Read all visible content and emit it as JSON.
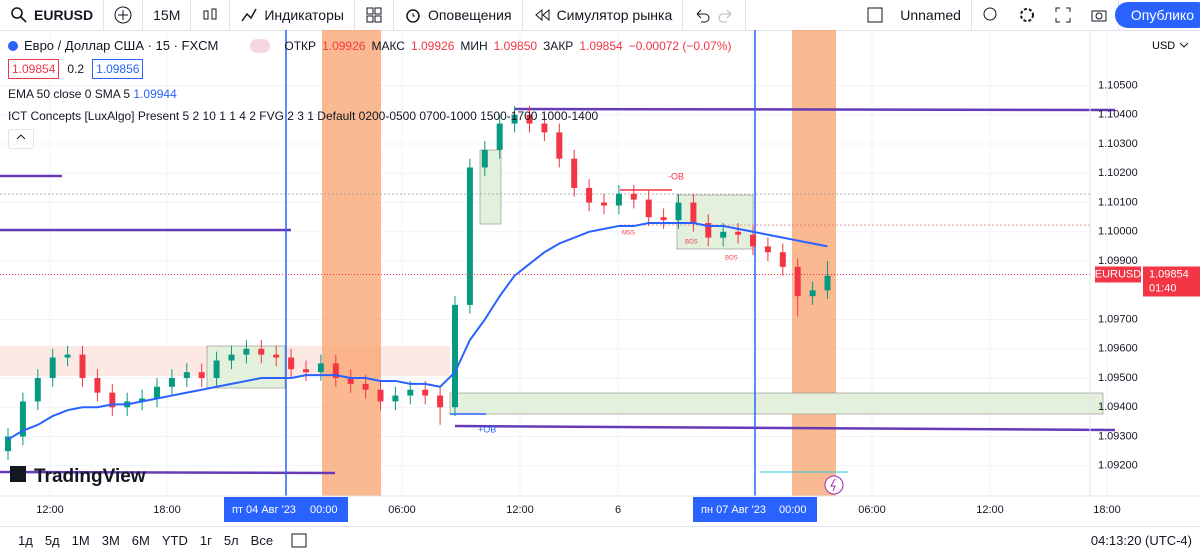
{
  "toolbar": {
    "symbol": "EURUSD",
    "interval": "15M",
    "indicators": "Индикаторы",
    "alerts": "Оповещения",
    "replay": "Симулятор рынка",
    "layout": "Unnamed",
    "publish": "Опублико"
  },
  "legend": {
    "instrument": "Евро / Доллар США · 15 · FXCM",
    "open_label": "ОТКР",
    "open": "1.09926",
    "high_label": "МАКС",
    "high": "1.09926",
    "low_label": "МИН",
    "low": "1.09850",
    "close_label": "ЗАКР",
    "close": "1.09854",
    "change": "−0.00072 (−0.07%)",
    "bid": "1.09854",
    "spread": "0.2",
    "ask": "1.09856",
    "ema_label": "EMA 50 close 0 SMA 5",
    "ema_value": "1.09944",
    "ict_label": "ICT Concepts [LuxAlgo] Present 5 2 10 1 1 4 2 FVG 2 3 1 Default 0200-0500 0700-1000 1500-1700 1000-1400"
  },
  "chart_data": {
    "type": "candlestick",
    "currency": "USD",
    "logo": "TradingView",
    "open": [
      1.0925,
      1.093,
      1.0942,
      1.095,
      1.0957,
      1.0958,
      1.095,
      1.0945,
      1.094,
      1.0942,
      1.0943,
      1.0947,
      1.095,
      1.0952,
      1.095,
      1.0956,
      1.0958,
      1.096,
      1.0958,
      1.0957,
      1.0953,
      1.0952,
      1.0955,
      1.095,
      1.0948,
      1.0946,
      1.0942,
      1.0944,
      1.0946,
      1.0944,
      1.094,
      1.0975,
      1.1022,
      1.1028,
      1.1037,
      1.104,
      1.1037,
      1.1034,
      1.1025,
      1.1015,
      1.101,
      1.1009,
      1.1013,
      1.1011,
      1.1005,
      1.1004,
      1.101,
      1.1003,
      1.0998,
      1.1,
      1.0999,
      1.0995,
      1.0993,
      1.0988,
      1.0978,
      1.098
    ],
    "high": [
      1.0933,
      1.0945,
      1.0953,
      1.096,
      1.0961,
      1.0961,
      1.0953,
      1.0948,
      1.0945,
      1.0946,
      1.095,
      1.0953,
      1.0955,
      1.0955,
      1.0959,
      1.0961,
      1.0963,
      1.0963,
      1.0961,
      1.096,
      1.0956,
      1.0958,
      1.0958,
      1.0953,
      1.0951,
      1.0949,
      1.0947,
      1.0949,
      1.0949,
      1.0947,
      1.0978,
      1.1025,
      1.1031,
      1.104,
      1.1043,
      1.1043,
      1.104,
      1.1037,
      1.1028,
      1.1018,
      1.1013,
      1.1016,
      1.1016,
      1.1014,
      1.1008,
      1.1013,
      1.1013,
      1.1006,
      1.1003,
      1.1003,
      1.1002,
      1.0998,
      1.0996,
      1.0991,
      1.0983,
      1.099
    ],
    "low": [
      1.0922,
      1.0927,
      1.0939,
      1.0947,
      1.0954,
      1.0947,
      1.0942,
      1.0937,
      1.0937,
      1.0939,
      1.094,
      1.0944,
      1.0947,
      1.0947,
      1.0947,
      1.0953,
      1.0955,
      1.0955,
      1.0954,
      1.095,
      1.0949,
      1.0949,
      1.0947,
      1.0945,
      1.0943,
      1.0939,
      1.0939,
      1.0941,
      1.0941,
      1.0934,
      1.0937,
      1.0972,
      1.1019,
      1.1025,
      1.1034,
      1.1034,
      1.1031,
      1.1022,
      1.1012,
      1.1007,
      1.1006,
      1.1006,
      1.1008,
      1.1002,
      1.1001,
      1.1001,
      1.1,
      1.0995,
      1.0995,
      1.0996,
      1.0992,
      1.099,
      1.0985,
      1.0971,
      1.0975,
      1.0977
    ],
    "close": [
      1.093,
      1.0942,
      1.095,
      1.0957,
      1.0958,
      1.095,
      1.0945,
      1.094,
      1.0942,
      1.0943,
      1.0947,
      1.095,
      1.0952,
      1.095,
      1.0956,
      1.0958,
      1.096,
      1.0958,
      1.0957,
      1.0953,
      1.0952,
      1.0955,
      1.095,
      1.0948,
      1.0946,
      1.0942,
      1.0944,
      1.0946,
      1.0944,
      1.094,
      1.0975,
      1.1022,
      1.1028,
      1.1037,
      1.104,
      1.1037,
      1.1034,
      1.1025,
      1.1015,
      1.101,
      1.1009,
      1.1013,
      1.1011,
      1.1005,
      1.1004,
      1.101,
      1.1003,
      1.0998,
      1.1,
      1.0999,
      1.0995,
      1.0993,
      1.0988,
      1.0978,
      1.098,
      1.0985
    ],
    "ema": [
      1.0929,
      1.0932,
      1.0934,
      1.0937,
      1.0939,
      1.094,
      1.094,
      1.0941,
      1.0941,
      1.0942,
      1.0943,
      1.0944,
      1.0945,
      1.0946,
      1.0947,
      1.0948,
      1.0949,
      1.095,
      1.095,
      1.095,
      1.0951,
      1.0951,
      1.0951,
      1.095,
      1.095,
      1.0949,
      1.0949,
      1.0948,
      1.0948,
      1.0947,
      1.0952,
      1.0963,
      1.097,
      1.0978,
      1.0985,
      1.0989,
      1.0993,
      1.0996,
      1.0998,
      1.1,
      1.1001,
      1.1002,
      1.1002,
      1.1003,
      1.1003,
      1.1003,
      1.1003,
      1.1002,
      1.1002,
      1.1001,
      1.1,
      1.0999,
      1.0998,
      1.0997,
      1.0996,
      1.0995
    ],
    "up_color": "#089981",
    "down_color": "#f23645",
    "ema_color": "#2962ff",
    "ylim": [
      1.091,
      1.1069
    ],
    "yticks": [
      {
        "value": 1.092,
        "label": "1.09200"
      },
      {
        "value": 1.093,
        "label": "1.09300"
      },
      {
        "value": 1.094,
        "label": "1.09400"
      },
      {
        "value": 1.095,
        "label": "1.09500"
      },
      {
        "value": 1.096,
        "label": "1.09600"
      },
      {
        "value": 1.097,
        "label": "1.09700"
      },
      {
        "value": 1.099,
        "label": "1.09900"
      },
      {
        "value": 1.1,
        "label": "1.10000"
      },
      {
        "value": 1.101,
        "label": "1.10100"
      },
      {
        "value": 1.102,
        "label": "1.10200"
      },
      {
        "value": 1.103,
        "label": "1.10300"
      },
      {
        "value": 1.104,
        "label": "1.10400"
      },
      {
        "value": 1.105,
        "label": "1.10500"
      }
    ],
    "last_price": {
      "symbol": "EURUSD",
      "value": {
        "value": 1.09854,
        "label": "1.09854"
      },
      "countdown": "01:40"
    },
    "time_labels": [
      "12:00",
      "18:00",
      "06:00",
      "12:00",
      "6",
      "06:00",
      "12:00",
      "18:00"
    ],
    "date_markers": [
      {
        "date": "пт 04 Авг '23",
        "time": "00:00"
      },
      {
        "date": "пн 07 Авг '23",
        "time": "00:00"
      }
    ],
    "annotations": {
      "ob_bear": "-OB",
      "ob_bull": "+OB",
      "mss": "MSS",
      "bos1": "BOS",
      "bos2": "BOS"
    }
  },
  "footer": {
    "ranges": [
      "1д",
      "5д",
      "1М",
      "3М",
      "6М",
      "YTD",
      "1г",
      "5л",
      "Все"
    ],
    "clock": "04:13:20 (UTC-4)"
  }
}
